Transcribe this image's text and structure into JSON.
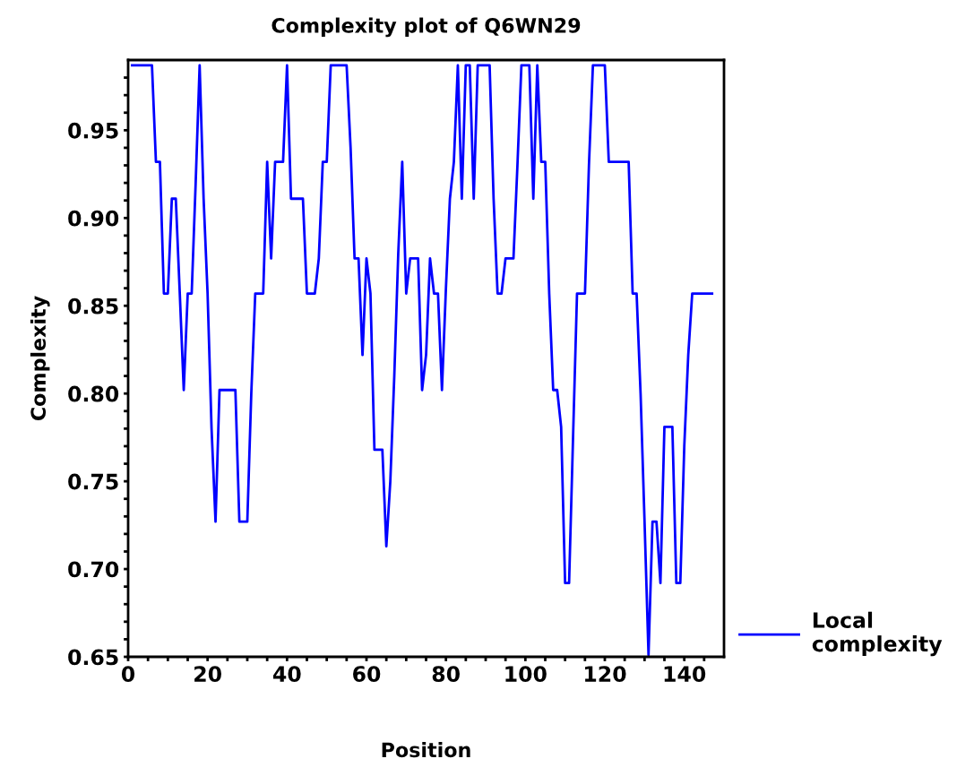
{
  "chart_data": {
    "type": "line",
    "title": "Complexity plot of Q6WN29",
    "xlabel": "Position",
    "ylabel": "Complexity",
    "x": [
      1,
      2,
      3,
      4,
      5,
      6,
      7,
      8,
      9,
      10,
      11,
      12,
      13,
      14,
      15,
      16,
      17,
      18,
      19,
      20,
      21,
      22,
      23,
      24,
      25,
      26,
      27,
      28,
      29,
      30,
      31,
      32,
      33,
      34,
      35,
      36,
      37,
      38,
      39,
      40,
      41,
      42,
      43,
      44,
      45,
      46,
      47,
      48,
      49,
      50,
      51,
      52,
      53,
      54,
      55,
      56,
      57,
      58,
      59,
      60,
      61,
      62,
      63,
      64,
      65,
      66,
      67,
      68,
      69,
      70,
      71,
      72,
      73,
      74,
      75,
      76,
      77,
      78,
      79,
      80,
      81,
      82,
      83,
      84,
      85,
      86,
      87,
      88,
      89,
      90,
      91,
      92,
      93,
      94,
      95,
      96,
      97,
      98,
      99,
      100,
      101,
      102,
      103,
      104,
      105,
      106,
      107,
      108,
      109,
      110,
      111,
      112,
      113,
      114,
      115,
      116,
      117,
      118,
      119,
      120,
      121,
      122,
      123,
      124,
      125,
      126,
      127,
      128,
      129,
      130,
      131,
      132,
      133,
      134,
      135,
      136,
      137,
      138,
      139,
      140,
      141,
      142,
      143,
      144,
      145,
      146,
      147
    ],
    "series": [
      {
        "name": "Local complexity",
        "color": "#0000ff",
        "values": [
          0.987,
          0.987,
          0.987,
          0.987,
          0.987,
          0.987,
          0.932,
          0.932,
          0.857,
          0.857,
          0.911,
          0.911,
          0.857,
          0.802,
          0.857,
          0.857,
          0.92,
          0.987,
          0.911,
          0.857,
          0.78,
          0.727,
          0.802,
          0.802,
          0.802,
          0.802,
          0.802,
          0.727,
          0.727,
          0.727,
          0.8,
          0.857,
          0.857,
          0.857,
          0.932,
          0.877,
          0.932,
          0.932,
          0.932,
          0.987,
          0.911,
          0.911,
          0.911,
          0.911,
          0.857,
          0.857,
          0.857,
          0.877,
          0.932,
          0.932,
          0.987,
          0.987,
          0.987,
          0.987,
          0.987,
          0.94,
          0.877,
          0.877,
          0.822,
          0.877,
          0.857,
          0.768,
          0.768,
          0.768,
          0.713,
          0.75,
          0.81,
          0.88,
          0.932,
          0.857,
          0.877,
          0.877,
          0.877,
          0.802,
          0.822,
          0.877,
          0.857,
          0.857,
          0.802,
          0.86,
          0.911,
          0.932,
          0.987,
          0.911,
          0.987,
          0.987,
          0.911,
          0.987,
          0.987,
          0.987,
          0.987,
          0.911,
          0.857,
          0.857,
          0.877,
          0.877,
          0.877,
          0.93,
          0.987,
          0.987,
          0.987,
          0.911,
          0.987,
          0.932,
          0.932,
          0.857,
          0.802,
          0.802,
          0.781,
          0.692,
          0.692,
          0.775,
          0.857,
          0.857,
          0.857,
          0.93,
          0.987,
          0.987,
          0.987,
          0.987,
          0.932,
          0.932,
          0.932,
          0.932,
          0.932,
          0.932,
          0.857,
          0.857,
          0.8,
          0.727,
          0.651,
          0.727,
          0.727,
          0.692,
          0.781,
          0.781,
          0.781,
          0.692,
          0.692,
          0.77,
          0.822,
          0.857,
          0.857,
          0.857,
          0.857,
          0.857,
          0.857
        ]
      }
    ],
    "xlim": [
      0,
      150
    ],
    "ylim": [
      0.65,
      0.99
    ],
    "xticks": [
      0,
      {
        "value": 5,
        "label": null
      },
      {
        "value": 10,
        "label": null
      },
      {
        "value": 15,
        "label": null
      },
      20,
      {
        "value": 25,
        "label": null
      },
      {
        "value": 30,
        "label": null
      },
      {
        "value": 35,
        "label": null
      },
      40,
      {
        "value": 45,
        "label": null
      },
      {
        "value": 50,
        "label": null
      },
      {
        "value": 55,
        "label": null
      },
      60,
      {
        "value": 65,
        "label": null
      },
      {
        "value": 70,
        "label": null
      },
      {
        "value": 75,
        "label": null
      },
      80,
      {
        "value": 85,
        "label": null
      },
      {
        "value": 90,
        "label": null
      },
      {
        "value": 95,
        "label": null
      },
      100,
      {
        "value": 105,
        "label": null
      },
      {
        "value": 110,
        "label": null
      },
      {
        "value": 115,
        "label": null
      },
      120,
      {
        "value": 125,
        "label": null
      },
      {
        "value": 130,
        "label": null
      },
      {
        "value": 135,
        "label": null
      },
      140,
      {
        "value": 145,
        "label": null
      }
    ],
    "yticks": [
      {
        "value": 0.65,
        "label": "0.65"
      },
      {
        "value": 0.66,
        "label": null
      },
      {
        "value": 0.67,
        "label": null
      },
      {
        "value": 0.68,
        "label": null
      },
      {
        "value": 0.69,
        "label": null
      },
      {
        "value": 0.7,
        "label": "0.70"
      },
      {
        "value": 0.71,
        "label": null
      },
      {
        "value": 0.72,
        "label": null
      },
      {
        "value": 0.73,
        "label": null
      },
      {
        "value": 0.74,
        "label": null
      },
      {
        "value": 0.75,
        "label": "0.75"
      },
      {
        "value": 0.76,
        "label": null
      },
      {
        "value": 0.77,
        "label": null
      },
      {
        "value": 0.78,
        "label": null
      },
      {
        "value": 0.79,
        "label": null
      },
      {
        "value": 0.8,
        "label": "0.80"
      },
      {
        "value": 0.81,
        "label": null
      },
      {
        "value": 0.82,
        "label": null
      },
      {
        "value": 0.83,
        "label": null
      },
      {
        "value": 0.84,
        "label": null
      },
      {
        "value": 0.85,
        "label": "0.85"
      },
      {
        "value": 0.86,
        "label": null
      },
      {
        "value": 0.87,
        "label": null
      },
      {
        "value": 0.88,
        "label": null
      },
      {
        "value": 0.89,
        "label": null
      },
      {
        "value": 0.9,
        "label": "0.90"
      },
      {
        "value": 0.91,
        "label": null
      },
      {
        "value": 0.92,
        "label": null
      },
      {
        "value": 0.93,
        "label": null
      },
      {
        "value": 0.94,
        "label": null
      },
      {
        "value": 0.95,
        "label": "0.95"
      },
      {
        "value": 0.96,
        "label": null
      },
      {
        "value": 0.97,
        "label": null
      },
      {
        "value": 0.98,
        "label": null
      }
    ],
    "grid": false,
    "legend": "bottom right",
    "marker": "none",
    "line_style": "solid"
  }
}
